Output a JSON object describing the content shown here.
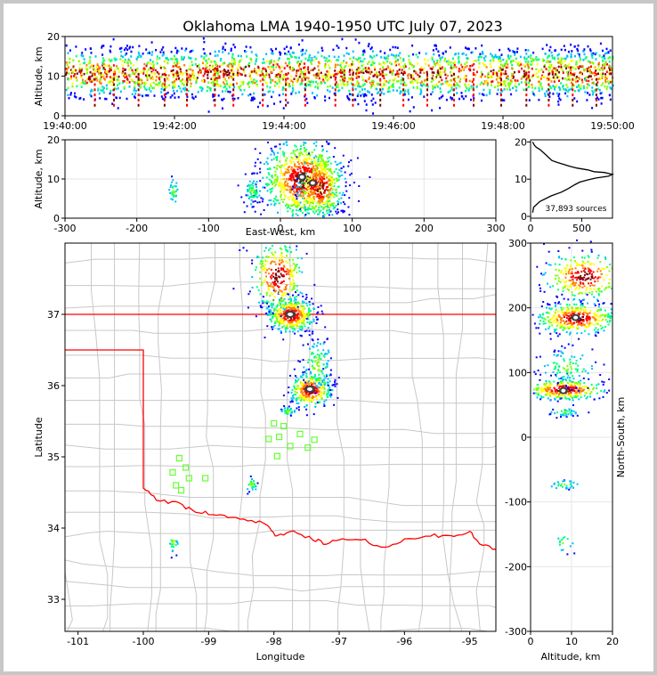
{
  "title": "Oklahoma LMA 1940-1950 UTC July 07, 2023",
  "colors": {
    "sources_scale": [
      "#0000ff",
      "#00bfff",
      "#00ff7f",
      "#80ff00",
      "#ffff00",
      "#ff8000",
      "#ff0000",
      "#800000"
    ],
    "state_border": "#ff0000",
    "county_lines": "#c8c8c8",
    "station_marker": "#66ff33",
    "density_curve": "#000000"
  },
  "chart_data": [
    {
      "id": "time-altitude",
      "type": "heatmap",
      "xlabel": "",
      "ylabel": "Altitude, km",
      "xlim": [
        "19:40:00",
        "19:50:00"
      ],
      "ylim": [
        0,
        20
      ],
      "xticks": [
        "19:40:00",
        "19:42:00",
        "19:44:00",
        "19:46:00",
        "19:48:00",
        "19:50:00"
      ],
      "yticks": [
        0,
        10,
        20
      ]
    },
    {
      "id": "eastwest-altitude",
      "type": "heatmap",
      "xlabel": "East-West, km",
      "ylabel": "Altitude, km",
      "xlim": [
        -300,
        300
      ],
      "ylim": [
        0,
        20
      ],
      "xticks": [
        -300,
        -200,
        -100,
        0,
        100,
        200,
        300
      ],
      "yticks": [
        0,
        10,
        20
      ],
      "clusters": [
        {
          "x": 30,
          "z": 10,
          "sx": 28,
          "sz": 5,
          "n": 900
        },
        {
          "x": 55,
          "z": 8,
          "sx": 16,
          "sz": 4,
          "n": 300
        },
        {
          "x": -40,
          "z": 7,
          "sx": 6,
          "sz": 2,
          "n": 60
        },
        {
          "x": -150,
          "z": 7,
          "sx": 4,
          "sz": 2,
          "n": 30
        }
      ]
    },
    {
      "id": "altitude-histogram",
      "type": "line",
      "xlabel": "",
      "ylabel": "",
      "xlim": [
        0,
        800
      ],
      "ylim": [
        0,
        20
      ],
      "xticks": [
        0,
        500
      ],
      "yticks": [
        0,
        10,
        20
      ],
      "annotation": "37,893 sources",
      "x": [
        20,
        40,
        60,
        90,
        130,
        170,
        210,
        260,
        320,
        380,
        450,
        560,
        620,
        720,
        800,
        760,
        640,
        560,
        480,
        430,
        370,
        300,
        200,
        90,
        30,
        20
      ],
      "y": [
        20,
        19,
        18.5,
        18,
        17,
        16,
        15,
        14.5,
        14,
        13.5,
        13,
        12.5,
        12,
        11.8,
        11.3,
        10.8,
        10.3,
        9.8,
        9.2,
        8.5,
        7.5,
        6.5,
        5.5,
        4,
        2.5,
        1
      ]
    },
    {
      "id": "plan-view",
      "type": "scatter",
      "xlabel": "Longitude",
      "ylabel": "Latitude",
      "xlim": [
        -101.2,
        -94.6
      ],
      "ylim": [
        32.55,
        38
      ],
      "xticks": [
        -101,
        -100,
        -99,
        -98,
        -97,
        -96,
        -95
      ],
      "yticks": [
        33,
        34,
        35,
        36,
        37
      ],
      "clusters": [
        {
          "lon": -97.75,
          "lat": 37.0,
          "slon": 0.18,
          "slat": 0.12,
          "n": 400
        },
        {
          "lon": -97.95,
          "lat": 37.55,
          "slon": 0.2,
          "slat": 0.25,
          "n": 300
        },
        {
          "lon": -97.45,
          "lat": 35.95,
          "slon": 0.16,
          "slat": 0.12,
          "n": 300
        },
        {
          "lon": -97.35,
          "lat": 36.3,
          "slon": 0.12,
          "slat": 0.2,
          "n": 120
        },
        {
          "lon": -97.8,
          "lat": 35.65,
          "slon": 0.06,
          "slat": 0.03,
          "n": 40
        },
        {
          "lon": -98.35,
          "lat": 34.62,
          "slon": 0.05,
          "slat": 0.05,
          "n": 25
        },
        {
          "lon": -99.55,
          "lat": 33.82,
          "slon": 0.04,
          "slat": 0.08,
          "n": 20
        }
      ],
      "stations": [
        [
          -99.45,
          34.98
        ],
        [
          -99.35,
          34.85
        ],
        [
          -99.55,
          34.78
        ],
        [
          -99.3,
          34.7
        ],
        [
          -99.5,
          34.6
        ],
        [
          -99.42,
          34.53
        ],
        [
          -99.05,
          34.7
        ],
        [
          -98.0,
          35.47
        ],
        [
          -98.08,
          35.25
        ],
        [
          -97.92,
          35.28
        ],
        [
          -97.85,
          35.43
        ],
        [
          -97.75,
          35.15
        ],
        [
          -97.95,
          35.01
        ],
        [
          -97.48,
          35.13
        ],
        [
          -97.38,
          35.24
        ],
        [
          -97.6,
          35.32
        ]
      ]
    },
    {
      "id": "altitude-northsouth",
      "type": "heatmap",
      "xlabel": "Altitude, km",
      "ylabel": "North-South, km",
      "xlim": [
        0,
        20
      ],
      "ylim": [
        -300,
        300
      ],
      "xticks": [
        0,
        10,
        20
      ],
      "yticks": [
        -300,
        -200,
        -100,
        0,
        100,
        200,
        300
      ],
      "clusters": [
        {
          "z": 11,
          "y": 185,
          "sz": 5,
          "sy": 12,
          "n": 400
        },
        {
          "z": 13,
          "y": 250,
          "sz": 5,
          "sy": 18,
          "n": 280
        },
        {
          "z": 8,
          "y": 75,
          "sz": 5,
          "sy": 8,
          "n": 300
        },
        {
          "z": 9,
          "y": 110,
          "sz": 4,
          "sy": 15,
          "n": 100
        },
        {
          "z": 8,
          "y": 40,
          "sz": 2,
          "sy": 3,
          "n": 40
        },
        {
          "z": 8,
          "y": -72,
          "sz": 2,
          "sy": 4,
          "n": 30
        },
        {
          "z": 8,
          "y": -160,
          "sz": 1.5,
          "sy": 8,
          "n": 15
        }
      ]
    }
  ]
}
